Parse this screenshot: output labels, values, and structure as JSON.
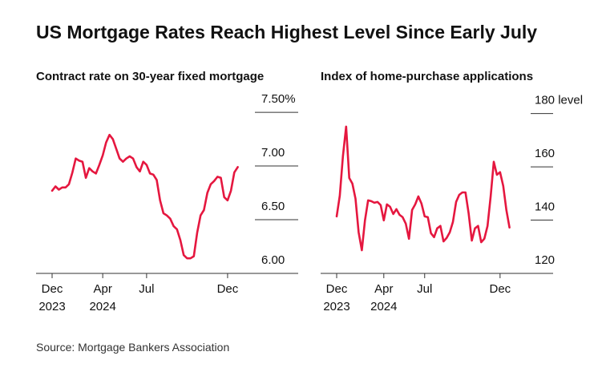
{
  "title": "US Mortgage Rates Reach Highest Level Since Early July",
  "source": "Source: Mortgage Bankers Association",
  "chart_data": [
    {
      "type": "line",
      "title": "Contract rate on 30-year fixed mortgage",
      "color": "#e5173f",
      "categories": [
        "Dec",
        null,
        null,
        null,
        null,
        null,
        null,
        null,
        null,
        null,
        null,
        null,
        null,
        null,
        null,
        "Apr",
        null,
        null,
        null,
        null,
        null,
        null,
        null,
        null,
        null,
        null,
        null,
        null,
        "Jul",
        null,
        null,
        null,
        null,
        null,
        null,
        null,
        null,
        null,
        null,
        null,
        null,
        null,
        null,
        null,
        null,
        null,
        null,
        null,
        null,
        null,
        null,
        null,
        "Dec",
        null,
        null,
        null
      ],
      "category_years": [
        "2023",
        null,
        null,
        null,
        null,
        null,
        null,
        null,
        null,
        null,
        null,
        null,
        null,
        null,
        null,
        "2024",
        null,
        null,
        null,
        null,
        null,
        null,
        null,
        null,
        null,
        null,
        null,
        null,
        null,
        null,
        null,
        null,
        null,
        null,
        null,
        null,
        null,
        null,
        null,
        null,
        null,
        null,
        null,
        null,
        null,
        null,
        null,
        null,
        null,
        null,
        null,
        null,
        null,
        null,
        null,
        null
      ],
      "values": [
        6.77,
        6.81,
        6.78,
        6.8,
        6.8,
        6.83,
        6.94,
        7.07,
        7.05,
        7.04,
        6.89,
        6.98,
        6.95,
        6.93,
        7.01,
        7.1,
        7.22,
        7.29,
        7.25,
        7.16,
        7.07,
        7.04,
        7.07,
        7.09,
        7.07,
        6.99,
        6.95,
        7.04,
        7.01,
        6.93,
        6.92,
        6.87,
        6.68,
        6.56,
        6.54,
        6.51,
        6.44,
        6.41,
        6.31,
        6.17,
        6.14,
        6.14,
        6.16,
        6.38,
        6.54,
        6.59,
        6.75,
        6.83,
        6.86,
        6.9,
        6.89,
        6.71,
        6.68,
        6.77,
        6.94,
        6.99
      ],
      "ylim": [
        6,
        7.65
      ],
      "yticks": [
        {
          "value": 6,
          "label": "6.00"
        },
        {
          "value": 6.5,
          "label": "6.50"
        },
        {
          "value": 7,
          "label": "7.00"
        },
        {
          "value": 7.5,
          "label": "7.50%"
        }
      ]
    },
    {
      "type": "line",
      "title": "Index of home-purchase applications",
      "color": "#e5173f",
      "categories": [
        "Dec",
        null,
        null,
        null,
        null,
        null,
        null,
        null,
        null,
        null,
        null,
        null,
        null,
        null,
        null,
        "Apr",
        null,
        null,
        null,
        null,
        null,
        null,
        null,
        null,
        null,
        null,
        null,
        null,
        "Jul",
        null,
        null,
        null,
        null,
        null,
        null,
        null,
        null,
        null,
        null,
        null,
        null,
        null,
        null,
        null,
        null,
        null,
        null,
        null,
        null,
        null,
        null,
        null,
        "Dec",
        null,
        null,
        null
      ],
      "category_years": [
        "2023",
        null,
        null,
        null,
        null,
        null,
        null,
        null,
        null,
        null,
        null,
        null,
        null,
        null,
        null,
        "2024",
        null,
        null,
        null,
        null,
        null,
        null,
        null,
        null,
        null,
        null,
        null,
        null,
        null,
        null,
        null,
        null,
        null,
        null,
        null,
        null,
        null,
        null,
        null,
        null,
        null,
        null,
        null,
        null,
        null,
        null,
        null,
        null,
        null,
        null,
        null,
        null,
        null,
        null,
        null,
        null
      ],
      "values": [
        141.4,
        149.2,
        164.0,
        175.1,
        155.8,
        153.7,
        148.0,
        135.4,
        128.7,
        139.9,
        147.4,
        147.1,
        146.5,
        146.8,
        145.6,
        139.9,
        145.9,
        145.0,
        142.3,
        144.1,
        142.0,
        141.1,
        138.7,
        133.0,
        143.8,
        145.9,
        148.9,
        146.2,
        141.4,
        141.1,
        135.1,
        133.6,
        136.9,
        137.8,
        132.0,
        133.3,
        135.4,
        139.3,
        146.8,
        149.5,
        150.4,
        150.4,
        142.6,
        132.3,
        136.9,
        137.8,
        131.7,
        133.0,
        137.8,
        148.9,
        161.9,
        157.0,
        158.0,
        152.8,
        143.8,
        137.2
      ],
      "ylim": [
        120,
        186.5
      ],
      "yticks": [
        120,
        140,
        160,
        {
          "value": 180,
          "label": "180 level"
        }
      ]
    }
  ]
}
